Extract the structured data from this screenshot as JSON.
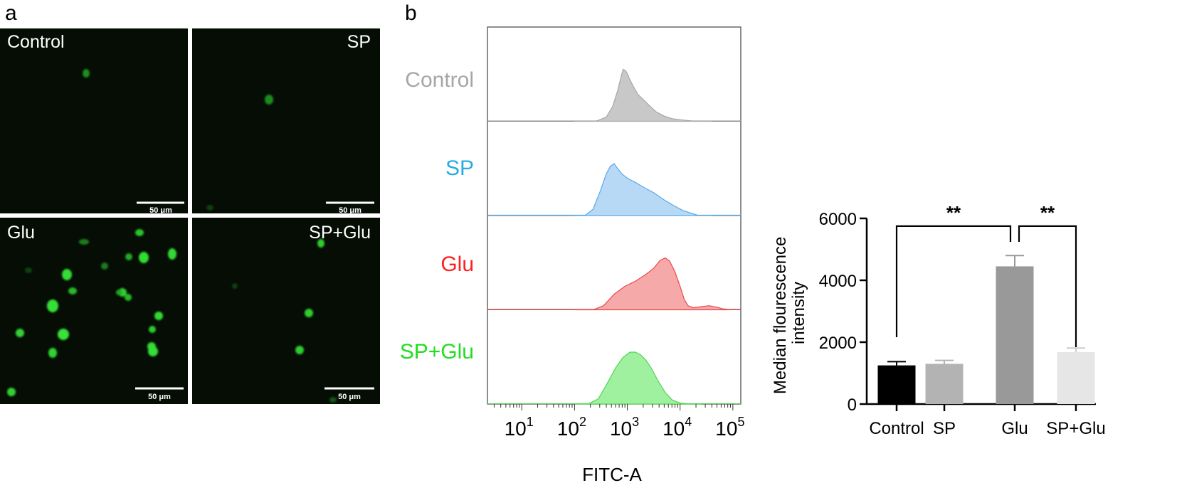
{
  "panels": {
    "a": "a",
    "b": "b"
  },
  "microscopy": {
    "quadrants": [
      {
        "label": "Control",
        "scale_bar": "50 μm"
      },
      {
        "label": "SP",
        "scale_bar": "50 μm"
      },
      {
        "label": "Glu",
        "scale_bar": "50 μm"
      },
      {
        "label": "SP+Glu",
        "scale_bar": "50 μm"
      }
    ]
  },
  "chart_data": [
    {
      "type": "area",
      "title": "",
      "xlabel": "FITC-A",
      "xscale": "log",
      "xlim_log10": [
        0.35,
        5.15
      ],
      "xticks": [
        {
          "base": "10",
          "exp": "1",
          "log": 1
        },
        {
          "base": "10",
          "exp": "2",
          "log": 2
        },
        {
          "base": "10",
          "exp": "3",
          "log": 3
        },
        {
          "base": "10",
          "exp": "4",
          "log": 4
        },
        {
          "base": "10",
          "exp": "5",
          "log": 5
        }
      ],
      "series": [
        {
          "name": "Control",
          "color": "#a6a6a6",
          "fill": "#c8c8c8",
          "log_x": [
            2.0,
            2.4,
            2.6,
            2.72,
            2.82,
            2.88,
            2.92,
            2.96,
            3.0,
            3.05,
            3.12,
            3.2,
            3.3,
            3.42,
            3.55,
            3.7,
            3.85,
            4.0,
            4.2,
            4.35,
            4.6
          ],
          "y": [
            0,
            0,
            0.08,
            0.28,
            0.6,
            0.85,
            1.0,
            0.98,
            0.92,
            0.8,
            0.66,
            0.52,
            0.42,
            0.3,
            0.18,
            0.1,
            0.05,
            0.03,
            0.01,
            0,
            0
          ]
        },
        {
          "name": "SP",
          "color": "#5aa9e6",
          "fill": "#b7d9f6",
          "log_x": [
            2.0,
            2.2,
            2.35,
            2.48,
            2.6,
            2.68,
            2.75,
            2.82,
            2.9,
            3.0,
            3.15,
            3.3,
            3.5,
            3.7,
            3.9,
            4.05,
            4.2,
            4.35,
            4.6
          ],
          "y": [
            0,
            0,
            0.12,
            0.45,
            0.8,
            0.95,
            1.0,
            0.9,
            0.8,
            0.72,
            0.64,
            0.55,
            0.44,
            0.3,
            0.18,
            0.1,
            0.05,
            0,
            0
          ]
        },
        {
          "name": "Glu",
          "color": "#e84a4a",
          "fill": "#f6a9a9",
          "log_x": [
            2.0,
            2.35,
            2.55,
            2.75,
            2.95,
            3.15,
            3.35,
            3.5,
            3.62,
            3.72,
            3.8,
            3.9,
            4.0,
            4.08,
            4.15,
            4.25,
            4.4,
            4.55,
            4.7,
            4.8,
            4.95
          ],
          "y": [
            0,
            0,
            0.08,
            0.3,
            0.45,
            0.55,
            0.68,
            0.8,
            0.95,
            1.0,
            0.94,
            0.74,
            0.45,
            0.2,
            0.08,
            0.04,
            0.06,
            0.08,
            0.05,
            0.02,
            0
          ]
        },
        {
          "name": "SP+Glu",
          "color": "#55d455",
          "fill": "#9ff09f",
          "log_x": [
            2.0,
            2.25,
            2.45,
            2.62,
            2.78,
            2.92,
            3.05,
            3.15,
            3.25,
            3.35,
            3.45,
            3.58,
            3.72,
            3.85,
            4.0,
            4.2,
            4.4
          ],
          "y": [
            0,
            0,
            0.1,
            0.4,
            0.7,
            0.9,
            1.0,
            1.0,
            0.95,
            0.85,
            0.7,
            0.45,
            0.22,
            0.08,
            0.02,
            0,
            0
          ]
        }
      ]
    },
    {
      "type": "bar",
      "title": "",
      "xlabel": "",
      "ylabel": "Median flourescence intensity",
      "ylim": [
        0,
        6000
      ],
      "yticks": [
        {
          "value": 0,
          "label": "0"
        },
        {
          "value": 2000,
          "label": "2000"
        },
        {
          "value": 4000,
          "label": "4000"
        },
        {
          "value": 6000,
          "label": "6000"
        }
      ],
      "categories": [
        "Control",
        "SP",
        "Glu",
        "SP+Glu"
      ],
      "values": [
        1250,
        1300,
        4450,
        1680
      ],
      "errors": [
        120,
        110,
        350,
        130
      ],
      "colors": [
        "#000000",
        "#b3b3b3",
        "#999999",
        "#e6e6e6"
      ],
      "significance": [
        {
          "from": 0,
          "to": 2,
          "label": "**"
        },
        {
          "from": 2,
          "to": 3,
          "label": "**"
        }
      ]
    }
  ]
}
